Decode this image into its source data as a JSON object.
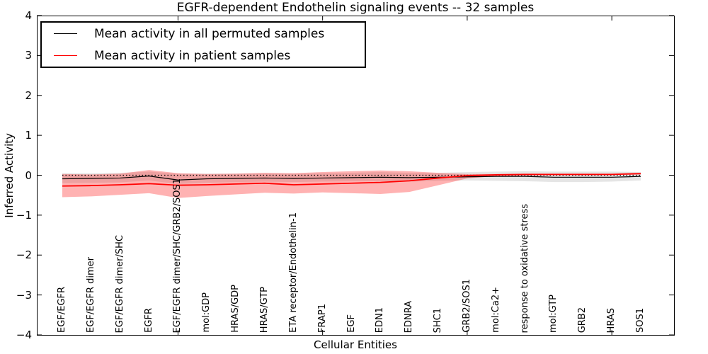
{
  "legend": {
    "items": [
      {
        "label": "Mean activity in all permuted samples",
        "color": "#000000"
      },
      {
        "label": "Mean activity in patient samples",
        "color": "#ff0000"
      }
    ]
  },
  "chart_data": {
    "type": "line",
    "title": "EGFR-dependent Endothelin signaling events -- 32 samples",
    "xlabel": "Cellular Entities",
    "ylabel": "Inferred Activity",
    "ylim": [
      -4,
      4
    ],
    "ytick_values": [
      4,
      3,
      2,
      1,
      0,
      -1,
      -2,
      -3,
      -4
    ],
    "ytick_labels": [
      "4",
      "3",
      "2",
      "1",
      "0",
      "−1",
      "−2",
      "−3",
      "−4"
    ],
    "x_major_tick_indices": [
      4,
      9,
      14,
      19
    ],
    "grid": false,
    "legend_position": "upper left",
    "zero_line": {
      "value": 0,
      "style": "dotted",
      "color": "#000000"
    },
    "categories": [
      "EGF/EGFR",
      "EGF/EGFR dimer",
      "EGF/EGFR dimer/SHC",
      "EGFR",
      "EGF/EGFR dimer/SHC/GRB2/SOS1",
      "mol:GDP",
      "HRAS/GDP",
      "HRAS/GTP",
      "ETA receptor/Endothelin-1",
      "FRAP1",
      "EGF",
      "EDN1",
      "EDNRA",
      "SHC1",
      "GRB2/SOS1",
      "mol:Ca2+",
      "response to oxidative stress",
      "mol:GTP",
      "GRB2",
      "HRAS",
      "SOS1"
    ],
    "series": [
      {
        "key": "permuted",
        "name": "Mean activity in all permuted samples",
        "color": "#000000",
        "line_width": 1.2,
        "band_color": "rgba(0,0,0,0.10)",
        "values": [
          -0.09,
          -0.08,
          -0.07,
          -0.02,
          -0.12,
          -0.09,
          -0.08,
          -0.07,
          -0.08,
          -0.07,
          -0.06,
          -0.05,
          -0.06,
          -0.05,
          -0.04,
          -0.03,
          -0.03,
          -0.05,
          -0.05,
          -0.05,
          -0.03
        ],
        "band_upper": [
          0.05,
          0.05,
          0.06,
          0.09,
          0.04,
          0.04,
          0.04,
          0.05,
          0.04,
          0.05,
          0.06,
          0.08,
          0.06,
          0.06,
          0.08,
          0.09,
          0.1,
          0.09,
          0.09,
          0.09,
          0.08
        ],
        "band_lower": [
          -0.2,
          -0.19,
          -0.18,
          -0.13,
          -0.22,
          -0.19,
          -0.17,
          -0.16,
          -0.17,
          -0.16,
          -0.15,
          -0.15,
          -0.16,
          -0.14,
          -0.13,
          -0.14,
          -0.15,
          -0.17,
          -0.17,
          -0.16,
          -0.13
        ]
      },
      {
        "key": "patient",
        "name": "Mean activity in patient samples",
        "color": "#ff0000",
        "line_width": 1.8,
        "band_color": "rgba(255,0,0,0.30)",
        "values": [
          -0.27,
          -0.26,
          -0.24,
          -0.21,
          -0.25,
          -0.24,
          -0.22,
          -0.2,
          -0.24,
          -0.22,
          -0.2,
          -0.18,
          -0.14,
          -0.07,
          -0.01,
          0.01,
          0.02,
          0.02,
          0.02,
          0.02,
          0.04
        ],
        "band_upper": [
          0.03,
          0.02,
          0.04,
          0.13,
          0.05,
          0.03,
          0.04,
          0.06,
          0.05,
          0.08,
          0.1,
          0.12,
          0.1,
          0.06,
          0.03,
          0.03,
          0.04,
          0.04,
          0.04,
          0.04,
          0.06
        ],
        "band_lower": [
          -0.55,
          -0.53,
          -0.49,
          -0.45,
          -0.57,
          -0.52,
          -0.48,
          -0.44,
          -0.46,
          -0.43,
          -0.45,
          -0.47,
          -0.42,
          -0.25,
          -0.08,
          -0.02,
          -0.01,
          0.0,
          0.0,
          0.0,
          0.02
        ]
      }
    ]
  }
}
